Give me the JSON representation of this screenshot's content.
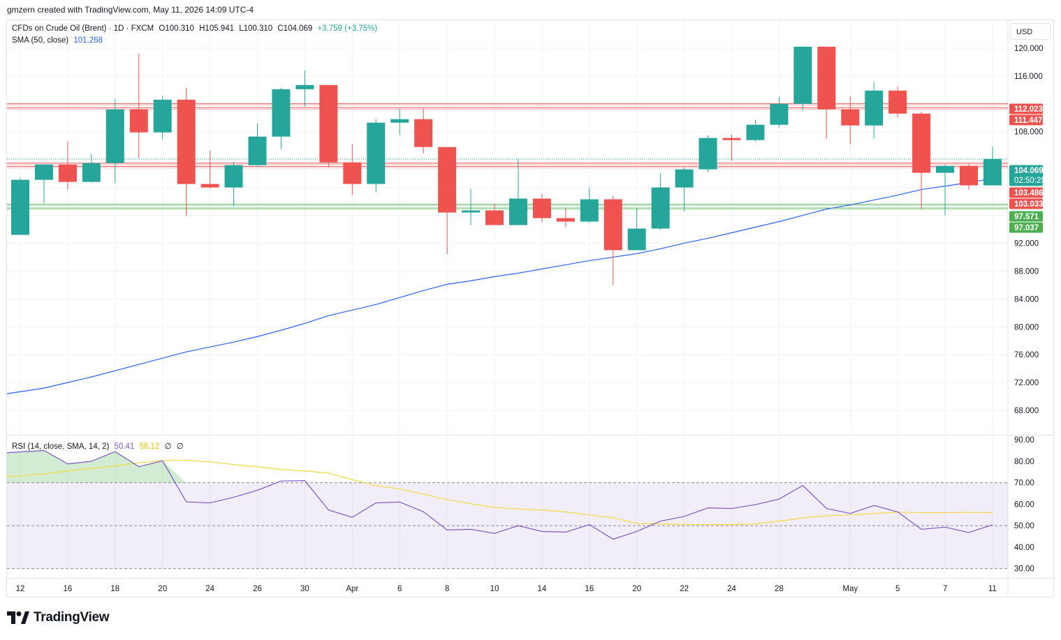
{
  "header": {
    "credit": "gmzern created with TradingView.com, May 11, 2026 14:09 UTC-4"
  },
  "main_legend": {
    "symbol": "CFDs on Crude Oil (Brent) · 1D · FXCM",
    "open": "O100.310",
    "high": "H105.941",
    "low": "L100.310",
    "close": "C104.069",
    "change": "+3.759 (+3.75%)",
    "sma_label": "SMA (50, close)",
    "sma_value": "101.268"
  },
  "rsi_legend": {
    "label": "RSI (14, close, SMA, 14, 2)",
    "rsi_value": "50.41",
    "rsi_sma_value": "56.12",
    "extra1": "∅",
    "extra2": "∅"
  },
  "currency_button": "USD",
  "brand": "TradingView",
  "colors": {
    "up": "#26a69a",
    "down": "#ef5350",
    "sma": "#2962ff",
    "rsi": "#7e57c2",
    "rsi_sma": "#f5d93d",
    "resistance": "#ef5350",
    "support": "#4caf50"
  },
  "chart_data": [
    {
      "type": "candlestick",
      "title": "CFDs on Crude Oil (Brent) · 1D · FXCM",
      "ylim": [
        64.5,
        124.0
      ],
      "y_ticks": [
        68,
        72,
        76,
        80,
        84,
        88,
        92,
        96,
        100,
        104,
        108,
        112,
        116,
        120
      ],
      "y_tick_labels_visible": [
        "120.000",
        "116.000",
        "108.000",
        "92.000",
        "88.000",
        "84.000",
        "80.000",
        "76.000",
        "72.000",
        "68.000"
      ],
      "x_labels": [
        {
          "i": 0,
          "label": "12"
        },
        {
          "i": 2,
          "label": "16"
        },
        {
          "i": 4,
          "label": "18"
        },
        {
          "i": 6,
          "label": "20"
        },
        {
          "i": 8,
          "label": "24"
        },
        {
          "i": 10,
          "label": "26"
        },
        {
          "i": 12,
          "label": "30"
        },
        {
          "i": 14,
          "label": "Apr"
        },
        {
          "i": 16,
          "label": "6"
        },
        {
          "i": 18,
          "label": "8"
        },
        {
          "i": 20,
          "label": "10"
        },
        {
          "i": 22,
          "label": "14"
        },
        {
          "i": 24,
          "label": "16"
        },
        {
          "i": 26,
          "label": "20"
        },
        {
          "i": 28,
          "label": "22"
        },
        {
          "i": 30,
          "label": "24"
        },
        {
          "i": 32,
          "label": "28"
        },
        {
          "i": 35,
          "label": "May"
        },
        {
          "i": 37,
          "label": "5"
        },
        {
          "i": 39,
          "label": "7"
        },
        {
          "i": 41,
          "label": "11"
        }
      ],
      "candles": [
        {
          "o": 93.2,
          "h": 101.4,
          "l": 93.2,
          "c": 101.1
        },
        {
          "o": 101.1,
          "h": 103.3,
          "l": 97.7,
          "c": 103.3
        },
        {
          "o": 103.3,
          "h": 106.6,
          "l": 99.7,
          "c": 100.8
        },
        {
          "o": 100.8,
          "h": 104.8,
          "l": 100.7,
          "c": 103.5
        },
        {
          "o": 103.5,
          "h": 112.7,
          "l": 100.6,
          "c": 111.2
        },
        {
          "o": 111.2,
          "h": 119.2,
          "l": 104.2,
          "c": 107.9
        },
        {
          "o": 107.9,
          "h": 113.2,
          "l": 106.9,
          "c": 112.6
        },
        {
          "o": 112.6,
          "h": 114.3,
          "l": 95.9,
          "c": 100.5
        },
        {
          "o": 100.5,
          "h": 105.3,
          "l": 99.8,
          "c": 100.0
        },
        {
          "o": 100.0,
          "h": 103.7,
          "l": 97.3,
          "c": 103.2
        },
        {
          "o": 103.2,
          "h": 109.2,
          "l": 103.0,
          "c": 107.3
        },
        {
          "o": 107.3,
          "h": 114.3,
          "l": 105.5,
          "c": 114.1
        },
        {
          "o": 114.1,
          "h": 116.8,
          "l": 111.6,
          "c": 114.7
        },
        {
          "o": 114.7,
          "h": 114.7,
          "l": 102.9,
          "c": 103.6
        },
        {
          "o": 103.6,
          "h": 106.2,
          "l": 98.9,
          "c": 100.5
        },
        {
          "o": 100.5,
          "h": 109.8,
          "l": 99.3,
          "c": 109.3
        },
        {
          "o": 109.3,
          "h": 111.3,
          "l": 107.5,
          "c": 109.8
        },
        {
          "o": 109.8,
          "h": 111.3,
          "l": 104.9,
          "c": 105.8
        },
        {
          "o": 105.8,
          "h": 105.8,
          "l": 90.4,
          "c": 96.4
        },
        {
          "o": 96.4,
          "h": 99.8,
          "l": 94.6,
          "c": 96.7
        },
        {
          "o": 96.7,
          "h": 97.7,
          "l": 94.6,
          "c": 94.6
        },
        {
          "o": 94.6,
          "h": 104.1,
          "l": 94.6,
          "c": 98.4
        },
        {
          "o": 98.4,
          "h": 99.1,
          "l": 95.0,
          "c": 95.6
        },
        {
          "o": 95.6,
          "h": 97.1,
          "l": 94.3,
          "c": 95.1
        },
        {
          "o": 95.1,
          "h": 100.0,
          "l": 94.9,
          "c": 98.3
        },
        {
          "o": 98.3,
          "h": 98.8,
          "l": 86.0,
          "c": 91.0
        },
        {
          "o": 91.0,
          "h": 97.0,
          "l": 91.0,
          "c": 94.1
        },
        {
          "o": 94.1,
          "h": 102.1,
          "l": 93.9,
          "c": 100.0
        },
        {
          "o": 100.0,
          "h": 102.9,
          "l": 96.6,
          "c": 102.6
        },
        {
          "o": 102.6,
          "h": 107.5,
          "l": 102.2,
          "c": 107.1
        },
        {
          "o": 107.1,
          "h": 107.6,
          "l": 103.8,
          "c": 106.8
        },
        {
          "o": 106.8,
          "h": 109.7,
          "l": 106.6,
          "c": 109.0
        },
        {
          "o": 109.0,
          "h": 113.0,
          "l": 108.6,
          "c": 112.0
        },
        {
          "o": 112.0,
          "h": 120.2,
          "l": 111.0,
          "c": 120.2
        },
        {
          "o": 120.2,
          "h": 120.2,
          "l": 107.0,
          "c": 111.2
        },
        {
          "o": 111.2,
          "h": 113.1,
          "l": 106.2,
          "c": 108.9
        },
        {
          "o": 108.9,
          "h": 115.1,
          "l": 107.0,
          "c": 113.9
        },
        {
          "o": 113.9,
          "h": 114.5,
          "l": 110.1,
          "c": 110.6
        },
        {
          "o": 110.6,
          "h": 110.9,
          "l": 96.9,
          "c": 102.1
        },
        {
          "o": 102.1,
          "h": 103.3,
          "l": 96.0,
          "c": 103.1
        },
        {
          "o": 103.1,
          "h": 103.4,
          "l": 99.7,
          "c": 100.3
        },
        {
          "o": 100.3,
          "h": 105.9,
          "l": 100.3,
          "c": 104.1
        }
      ],
      "sma": {
        "name": "SMA (50, close)",
        "values": [
          70.4,
          71.2,
          72.0,
          72.8,
          73.7,
          74.6,
          75.5,
          76.4,
          77.1,
          77.8,
          78.6,
          79.5,
          80.5,
          81.6,
          82.4,
          83.2,
          84.2,
          85.2,
          86.1,
          86.6,
          87.2,
          87.7,
          88.3,
          88.9,
          89.5,
          90.0,
          90.5,
          91.2,
          92.0,
          92.7,
          93.5,
          94.3,
          95.1,
          96.0,
          96.9,
          97.5,
          98.2,
          98.9,
          99.7,
          100.2,
          100.7,
          101.268
        ]
      },
      "horizontal_levels": [
        {
          "value": 112.023,
          "label": "112.023",
          "kind": "resistance"
        },
        {
          "value": 111.447,
          "label": "111.447",
          "kind": "resistance"
        },
        {
          "value": 103.486,
          "label": "103.486",
          "kind": "resistance"
        },
        {
          "value": 103.033,
          "label": "103.033",
          "kind": "resistance"
        },
        {
          "value": 97.571,
          "label": "97.571",
          "kind": "support"
        },
        {
          "value": 97.037,
          "label": "97.037",
          "kind": "support"
        }
      ],
      "last_price": {
        "value": 104.069,
        "label": "104.069",
        "countdown": "02:50:29"
      }
    },
    {
      "type": "line",
      "title": "RSI (14, close, SMA, 14, 2)",
      "ylim": [
        26,
        92
      ],
      "y_ticks": [
        30,
        40,
        50,
        60,
        70,
        80,
        90
      ],
      "y_tick_labels": [
        "30.00",
        "40.00",
        "50.00",
        "60.00",
        "70.00",
        "80.00",
        "90.00"
      ],
      "bands": {
        "upper": 70,
        "middle": 50,
        "lower": 30
      },
      "series": [
        {
          "name": "RSI",
          "values": [
            84.0,
            85.0,
            78.8,
            80.0,
            84.5,
            77.5,
            80.2,
            61.1,
            60.6,
            63.2,
            66.5,
            70.8,
            71.0,
            57.3,
            53.9,
            60.6,
            61.0,
            56.5,
            48.0,
            48.3,
            46.4,
            50.0,
            47.3,
            47.0,
            50.5,
            43.7,
            47.3,
            52.1,
            54.3,
            58.3,
            58.0,
            59.8,
            62.4,
            68.7,
            58.0,
            55.7,
            59.4,
            56.4,
            48.3,
            49.3,
            46.8,
            50.41
          ]
        },
        {
          "name": "RSI SMA",
          "values": [
            72.8,
            74.1,
            75.5,
            76.6,
            77.9,
            79.3,
            80.3,
            80.5,
            79.7,
            78.5,
            77.4,
            76.2,
            75.5,
            74.5,
            71.4,
            68.7,
            67.1,
            64.7,
            62.1,
            60.2,
            58.5,
            57.8,
            57.3,
            56.4,
            55.0,
            53.7,
            51.0,
            50.8,
            50.6,
            50.5,
            50.5,
            50.8,
            52.1,
            53.6,
            54.6,
            55.0,
            55.7,
            56.3,
            56.1,
            56.1,
            56.2,
            56.12
          ]
        }
      ]
    }
  ]
}
